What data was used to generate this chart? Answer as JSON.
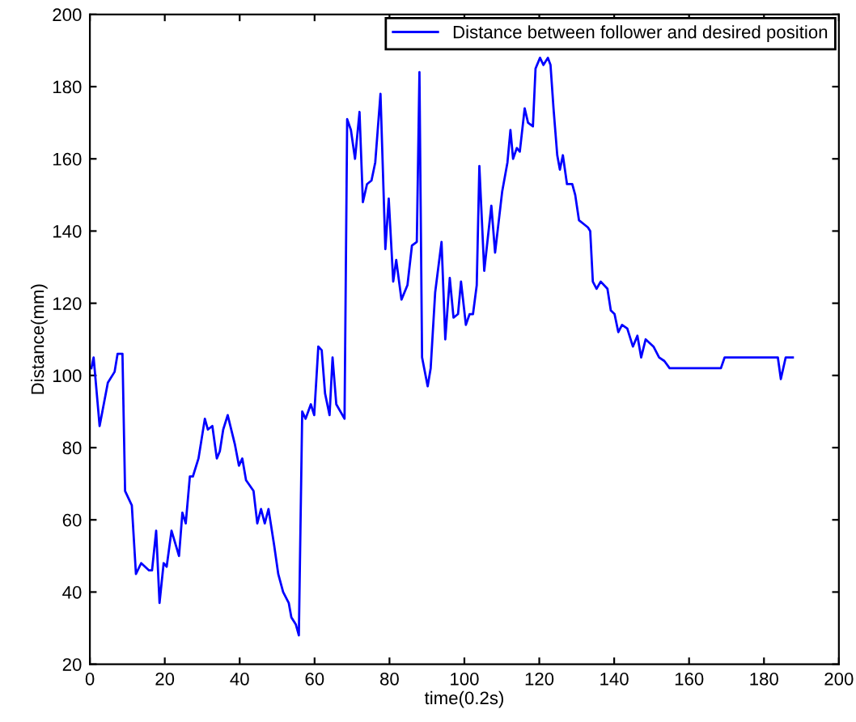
{
  "chart_data": {
    "type": "line",
    "xlabel": "time(0.2s)",
    "ylabel": "Distance(mm)",
    "xlim": [
      0,
      200
    ],
    "ylim": [
      20,
      200
    ],
    "xticks": [
      0,
      20,
      40,
      60,
      80,
      100,
      120,
      140,
      160,
      180,
      200
    ],
    "yticks": [
      20,
      40,
      60,
      80,
      100,
      120,
      140,
      160,
      180,
      200
    ],
    "grid": false,
    "legend": "top right",
    "marker": "none",
    "line_style": "solid",
    "series": [
      {
        "name": "Distance between follower and desired position",
        "color": "#0000ff",
        "x": [
          0.4,
          1,
          2.6,
          4.8,
          6.6,
          7.4,
          8.7,
          9.4,
          11.2,
          12.3,
          13.7,
          15.8,
          16.6,
          17.7,
          18.6,
          19.7,
          20.5,
          21.8,
          23.8,
          24.7,
          25.6,
          26.7,
          27.5,
          29,
          30.7,
          31.5,
          32.7,
          33.9,
          34.7,
          35.6,
          36.8,
          38.7,
          39.8,
          40.7,
          41.7,
          43.7,
          44.7,
          45.7,
          46.7,
          47.7,
          49.2,
          50.3,
          51.6,
          53.1,
          53.8,
          55,
          55.8,
          56.7,
          57.6,
          59,
          59.9,
          61,
          61.9,
          62.8,
          64,
          64.8,
          65.8,
          68,
          68.7,
          69.7,
          70.8,
          72,
          72.9,
          74,
          75.2,
          76.2,
          77.6,
          78.9,
          79.8,
          81,
          81.8,
          83.2,
          84.8,
          86,
          87.3,
          88,
          88.7,
          90.2,
          91,
          92.2,
          93.9,
          94.9,
          96.1,
          97.1,
          98.3,
          99.1,
          100.4,
          101.4,
          102.3,
          103.3,
          104,
          105.3,
          107.2,
          108.2,
          110.1,
          111.5,
          112.3,
          113,
          114,
          114.8,
          116.1,
          117,
          118.3,
          119,
          120.2,
          121.1,
          122.3,
          123,
          123.8,
          124.8,
          125.5,
          126.3,
          127.4,
          128.8,
          129.6,
          130.6,
          131.8,
          133,
          133.6,
          134.3,
          135.3,
          136.4,
          138.2,
          139.1,
          140.1,
          141.1,
          142.1,
          143.5,
          145,
          146.2,
          147.2,
          148.4,
          150.5,
          152,
          153.4,
          154.8,
          156,
          168.5,
          169.5,
          183.7,
          184.5,
          185.8,
          187.7
        ],
        "values": [
          102,
          105,
          86,
          98,
          101,
          106,
          106,
          68,
          64,
          45,
          48,
          46,
          46,
          57,
          37,
          48,
          47,
          57,
          50,
          62,
          59,
          72,
          72,
          77,
          88,
          85,
          86,
          77,
          79,
          85,
          89,
          81,
          75,
          77,
          71,
          68,
          59,
          63,
          59,
          63,
          53,
          45,
          40,
          37,
          33,
          31,
          28,
          90,
          88,
          92,
          89,
          108,
          107,
          95,
          89,
          105,
          92,
          88,
          171,
          168,
          160,
          173,
          148,
          153,
          154,
          159,
          178,
          135,
          149,
          126,
          132,
          121,
          125,
          136,
          137,
          184,
          105,
          97,
          102,
          123,
          137,
          110,
          127,
          116,
          117,
          126,
          114,
          117,
          117,
          125,
          158,
          129,
          147,
          134,
          151,
          159,
          168,
          160,
          163,
          162,
          174,
          170,
          169,
          185,
          188,
          186,
          188,
          186,
          174,
          161,
          157,
          161,
          153,
          153,
          150,
          143,
          142,
          141,
          140,
          126,
          124,
          126,
          124,
          118,
          117,
          112,
          114,
          113,
          108,
          111,
          105,
          110,
          108,
          105,
          104,
          102,
          102,
          102,
          105,
          105,
          99,
          105,
          105
        ]
      }
    ]
  }
}
